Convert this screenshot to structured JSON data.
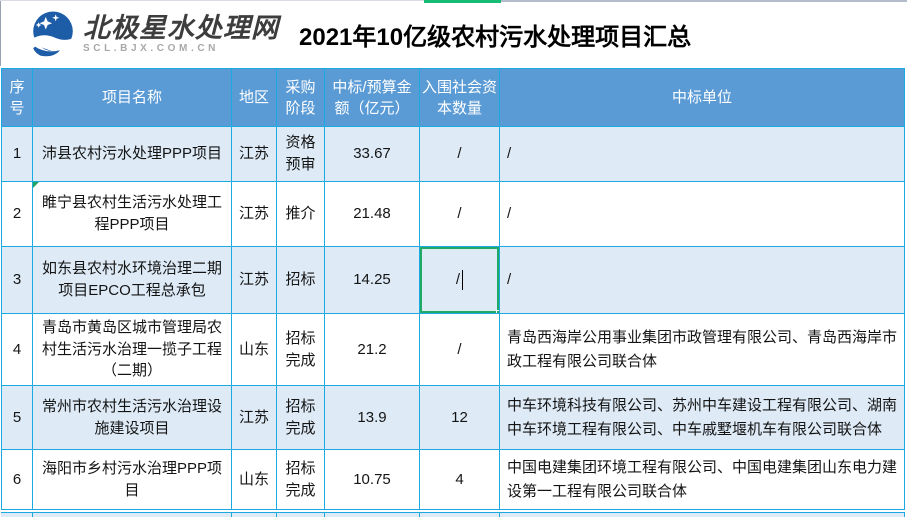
{
  "brand": {
    "name": "北极星水处理网",
    "domain": "SCL.BJX.COM.CN",
    "logo_color": "#1d5da8"
  },
  "title": "2021年10亿级农村污水处理项目汇总",
  "table": {
    "columns": [
      {
        "key": "index",
        "label": "序号"
      },
      {
        "key": "name",
        "label": "项目名称"
      },
      {
        "key": "region",
        "label": "地区"
      },
      {
        "key": "stage",
        "label": "采购阶段"
      },
      {
        "key": "amount",
        "label": "中标/预算金额（亿元）"
      },
      {
        "key": "capital",
        "label": "入围社会资本数量"
      },
      {
        "key": "winner",
        "label": "中标单位"
      }
    ],
    "rows": [
      {
        "index": "1",
        "name": "沛县农村污水处理PPP项目",
        "region": "江苏",
        "stage": "资格预审",
        "amount": "33.67",
        "capital": "/",
        "winner": "/"
      },
      {
        "index": "2",
        "name": "睢宁县农村生活污水处理工程PPP项目",
        "region": "江苏",
        "stage": "推介",
        "amount": "21.48",
        "capital": "/",
        "winner": "/"
      },
      {
        "index": "3",
        "name": "如东县农村水环境治理二期项目EPCO工程总承包",
        "region": "江苏",
        "stage": "招标",
        "amount": "14.25",
        "capital": "/",
        "winner": "/"
      },
      {
        "index": "4",
        "name": "青岛市黄岛区城市管理局农村生活污水治理一揽子工程（二期）",
        "region": "山东",
        "stage": "招标完成",
        "amount": "21.2",
        "capital": "/",
        "winner": "青岛西海岸公用事业集团市政管理有限公司、青岛西海岸市政工程有限公司联合体"
      },
      {
        "index": "5",
        "name": "常州市农村生活污水治理设施建设项目",
        "region": "江苏",
        "stage": "招标完成",
        "amount": "13.9",
        "capital": "12",
        "winner": "中车环境科技有限公司、苏州中车建设工程有限公司、湖南中车环境工程有限公司、中车戚墅堰机车有限公司联合体"
      },
      {
        "index": "6",
        "name": "海阳市乡村污水治理PPP项目",
        "region": "山东",
        "stage": "招标完成",
        "amount": "10.75",
        "capital": "4",
        "winner": "中国电建集团环境工程有限公司、中国电建集团山东电力建设第一工程有限公司联合体"
      }
    ],
    "selection": {
      "row": 3,
      "column": "capital",
      "editing": true
    },
    "flags": [
      {
        "row": 2,
        "column": "name"
      }
    ],
    "colors": {
      "header_bg": "#5b9bd5",
      "header_text": "#ffffff",
      "stripe_bg": "#deebf7",
      "grid_border": "#1aa9e1",
      "selection_green": "#21aa66",
      "tab_green": "#15bd74"
    }
  }
}
